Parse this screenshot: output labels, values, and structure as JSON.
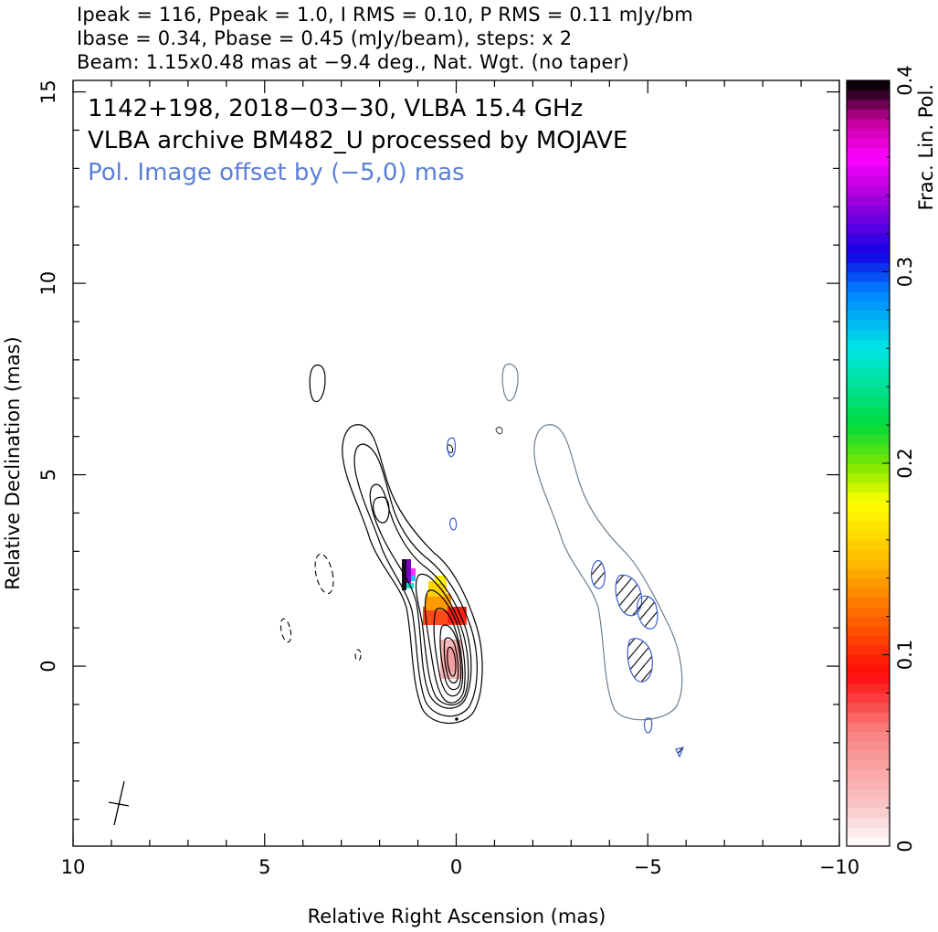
{
  "chart_data": {
    "type": "contour",
    "header": {
      "line1": "Ipeak = 116, Ppeak = 1.0, I RMS = 0.10, P RMS = 0.11 mJy/bm",
      "line2": "Ibase = 0.34, Pbase = 0.45 (mJy/beam), steps: x 2",
      "line3": "Beam: 1.15x0.48 mas at −9.4 deg., Nat. Wgt. (no taper)"
    },
    "labels": {
      "source": "1142+198, 2018−03−30, VLBA 15.4 GHz",
      "archive": "VLBA archive BM482_U processed by MOJAVE",
      "offset": "Pol. Image offset by (−5,0) mas"
    },
    "xlabel": "Relative Right Ascension (mas)",
    "ylabel": "Relative Declination (mas)",
    "colorbar_label": "Frac. Lin. Pol.",
    "xlim": [
      10,
      -10
    ],
    "ylim": [
      -4.7,
      15.3
    ],
    "x_ticks": [
      10,
      5,
      0,
      -5,
      -10
    ],
    "x_tick_labels": [
      "10",
      "5",
      "0",
      "−5",
      "−10"
    ],
    "y_ticks": [
      0,
      5,
      10,
      15
    ],
    "y_tick_labels": [
      "0",
      "5",
      "10",
      "15"
    ],
    "colorbar_range": [
      0,
      0.4
    ],
    "colorbar_ticks": [
      0,
      0.1,
      0.2,
      0.3,
      0.4
    ],
    "colorbar_tick_labels": [
      "0",
      "0.1",
      "0.2",
      "0.3",
      "0.4"
    ],
    "beam": {
      "major_mas": 1.15,
      "minor_mas": 0.48,
      "pa_deg": -9.4
    },
    "total_intensity": {
      "peak_mJy_per_beam": 116,
      "rms_mJy_per_beam": 0.1,
      "base_contour_mJy_per_beam": 0.34,
      "contour_step_factor": 2
    },
    "polarization": {
      "peak_mJy_per_beam": 1.0,
      "rms_mJy_per_beam": 0.11,
      "base_contour_mJy_per_beam": 0.45,
      "image_offset_mas": [
        -5,
        0
      ]
    },
    "colors": {
      "contour": "#000000",
      "pol_contour": "#3a5fcd",
      "offset_contour": "#6e7f8d",
      "label_blue": "#5b7fd6"
    }
  }
}
